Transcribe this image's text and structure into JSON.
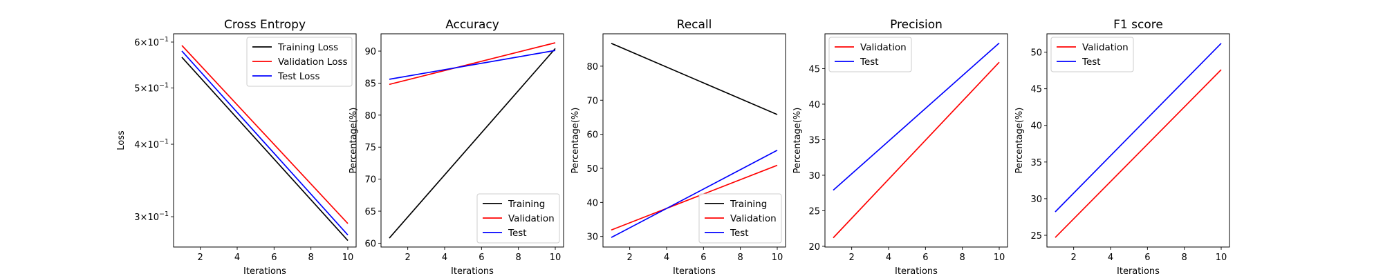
{
  "chart_data": [
    {
      "type": "line",
      "title": "Cross Entropy",
      "xlabel": "Iterations",
      "ylabel": "Loss",
      "yscale": "log",
      "xlim": [
        0.55,
        10.45
      ],
      "ylim": [
        0.266,
        0.62
      ],
      "xticks": [
        2,
        4,
        6,
        8,
        10
      ],
      "yticks": [
        {
          "value": 0.3,
          "base": "3",
          "exp": "−1"
        },
        {
          "value": 0.4,
          "base": "4",
          "exp": "−1"
        },
        {
          "value": 0.5,
          "base": "5",
          "exp": "−1"
        },
        {
          "value": 0.6,
          "base": "6",
          "exp": "−1"
        }
      ],
      "legend": "top-right",
      "series": [
        {
          "name": "Training Loss",
          "color": "#000000",
          "x": [
            1,
            10
          ],
          "y": [
            0.565,
            0.273
          ]
        },
        {
          "name": "Validation Loss",
          "color": "#ff0000",
          "x": [
            1,
            10
          ],
          "y": [
            0.592,
            0.292
          ]
        },
        {
          "name": "Test Loss",
          "color": "#0000ff",
          "x": [
            1,
            10
          ],
          "y": [
            0.579,
            0.279
          ]
        }
      ]
    },
    {
      "type": "line",
      "title": "Accuracy",
      "xlabel": "Iterations",
      "ylabel": "Percentage(%)",
      "xlim": [
        0.55,
        10.45
      ],
      "ylim": [
        59.4,
        92.7
      ],
      "xticks": [
        2,
        4,
        6,
        8,
        10
      ],
      "yticks": [
        60,
        65,
        70,
        75,
        80,
        85,
        90
      ],
      "legend": "bottom-right",
      "series": [
        {
          "name": "Training",
          "color": "#000000",
          "x": [
            1,
            10
          ],
          "y": [
            60.8,
            90.4
          ]
        },
        {
          "name": "Validation",
          "color": "#ff0000",
          "x": [
            1,
            10
          ],
          "y": [
            84.8,
            91.3
          ]
        },
        {
          "name": "Test",
          "color": "#0000ff",
          "x": [
            1,
            10
          ],
          "y": [
            85.6,
            90.1
          ]
        }
      ]
    },
    {
      "type": "line",
      "title": "Recall",
      "xlabel": "Iterations",
      "ylabel": "Percentage(%)",
      "xlim": [
        0.55,
        10.45
      ],
      "ylim": [
        26.9,
        89.5
      ],
      "xticks": [
        2,
        4,
        6,
        8,
        10
      ],
      "yticks": [
        30,
        40,
        50,
        60,
        70,
        80
      ],
      "legend": "bottom-right",
      "series": [
        {
          "name": "Training",
          "color": "#000000",
          "x": [
            1,
            10
          ],
          "y": [
            86.7,
            65.8
          ]
        },
        {
          "name": "Validation",
          "color": "#ff0000",
          "x": [
            1,
            10
          ],
          "y": [
            31.9,
            50.9
          ]
        },
        {
          "name": "Test",
          "color": "#0000ff",
          "x": [
            1,
            10
          ],
          "y": [
            29.7,
            55.3
          ]
        }
      ]
    },
    {
      "type": "line",
      "title": "Precision",
      "xlabel": "Iterations",
      "ylabel": "Percentage(%)",
      "xlim": [
        0.55,
        10.45
      ],
      "ylim": [
        19.9,
        49.9
      ],
      "xticks": [
        2,
        4,
        6,
        8,
        10
      ],
      "yticks": [
        20,
        25,
        30,
        35,
        40,
        45
      ],
      "legend": "top-left",
      "series": [
        {
          "name": "Validation",
          "color": "#ff0000",
          "x": [
            1,
            10
          ],
          "y": [
            21.2,
            45.9
          ]
        },
        {
          "name": "Test",
          "color": "#0000ff",
          "x": [
            1,
            10
          ],
          "y": [
            27.9,
            48.6
          ]
        }
      ]
    },
    {
      "type": "line",
      "title": "F1 score",
      "xlabel": "Iterations",
      "ylabel": "Percentage(%)",
      "xlim": [
        0.55,
        10.45
      ],
      "ylim": [
        23.4,
        52.5
      ],
      "xticks": [
        2,
        4,
        6,
        8,
        10
      ],
      "yticks": [
        25,
        30,
        35,
        40,
        45,
        50
      ],
      "legend": "top-left",
      "series": [
        {
          "name": "Validation",
          "color": "#ff0000",
          "x": [
            1,
            10
          ],
          "y": [
            24.7,
            47.6
          ]
        },
        {
          "name": "Test",
          "color": "#0000ff",
          "x": [
            1,
            10
          ],
          "y": [
            28.2,
            51.2
          ]
        }
      ]
    }
  ]
}
